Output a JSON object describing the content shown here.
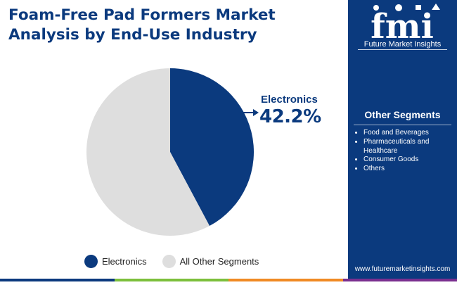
{
  "header": {
    "title_line1": "Foam-Free Pad Formers Market",
    "title_line2": "Analysis by End-Use Industry"
  },
  "chart_data": {
    "type": "pie",
    "title": "Foam-Free Pad Formers Market Analysis by End-Use Industry",
    "slices": [
      {
        "label": "Electronics",
        "value": 42.2,
        "color": "#0b3a7e"
      },
      {
        "label": "All Other Segments",
        "value": 57.8,
        "color": "#dedede"
      }
    ],
    "callout": {
      "label": "Electronics",
      "value_text": "42.2%"
    },
    "legend_position": "bottom"
  },
  "legend": {
    "items": [
      {
        "label": "Electronics",
        "color": "#0b3a7e"
      },
      {
        "label": "All Other Segments",
        "color": "#dedede"
      }
    ]
  },
  "sidebar": {
    "logo_text": "fmi",
    "logo_caption": "Future Market Insights",
    "segments_title": "Other Segments",
    "segments": [
      "Food and Beverages",
      "Pharmaceuticals and Healthcare",
      "Consumer Goods",
      "Others"
    ],
    "website": "www.futuremarketinsights.com"
  },
  "colors": {
    "brand_blue": "#0b3a7e",
    "other_gray": "#dedede",
    "bar_blue": "#0b3a7e",
    "bar_green": "#7cbf3c",
    "bar_orange": "#f08a24",
    "bar_purple": "#7a2f8f"
  }
}
